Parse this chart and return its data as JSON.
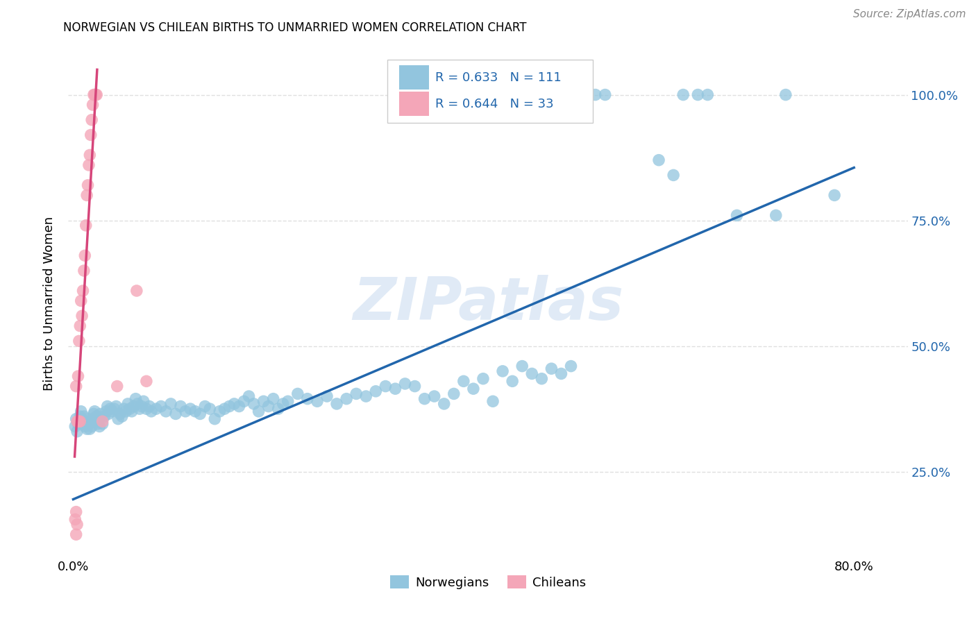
{
  "title": "NORWEGIAN VS CHILEAN BIRTHS TO UNMARRIED WOMEN CORRELATION CHART",
  "source": "Source: ZipAtlas.com",
  "ylabel": "Births to Unmarried Women",
  "watermark": "ZIPatlas",
  "legend_label_blue": "Norwegians",
  "legend_label_pink": "Chileans",
  "blue_color": "#92c5de",
  "blue_line_color": "#2166ac",
  "pink_color": "#f4a6b8",
  "pink_line_color": "#d6457a",
  "blue_scatter": [
    [
      0.002,
      0.34
    ],
    [
      0.003,
      0.355
    ],
    [
      0.004,
      0.33
    ],
    [
      0.005,
      0.345
    ],
    [
      0.006,
      0.35
    ],
    [
      0.007,
      0.36
    ],
    [
      0.008,
      0.37
    ],
    [
      0.009,
      0.355
    ],
    [
      0.01,
      0.345
    ],
    [
      0.011,
      0.36
    ],
    [
      0.012,
      0.34
    ],
    [
      0.013,
      0.35
    ],
    [
      0.014,
      0.335
    ],
    [
      0.015,
      0.355
    ],
    [
      0.016,
      0.345
    ],
    [
      0.017,
      0.335
    ],
    [
      0.018,
      0.35
    ],
    [
      0.019,
      0.34
    ],
    [
      0.02,
      0.355
    ],
    [
      0.021,
      0.365
    ],
    [
      0.022,
      0.37
    ],
    [
      0.023,
      0.35
    ],
    [
      0.024,
      0.36
    ],
    [
      0.025,
      0.345
    ],
    [
      0.026,
      0.355
    ],
    [
      0.027,
      0.34
    ],
    [
      0.028,
      0.365
    ],
    [
      0.03,
      0.345
    ],
    [
      0.032,
      0.36
    ],
    [
      0.034,
      0.37
    ],
    [
      0.035,
      0.38
    ],
    [
      0.036,
      0.365
    ],
    [
      0.038,
      0.375
    ],
    [
      0.04,
      0.37
    ],
    [
      0.042,
      0.375
    ],
    [
      0.044,
      0.38
    ],
    [
      0.046,
      0.355
    ],
    [
      0.048,
      0.365
    ],
    [
      0.05,
      0.36
    ],
    [
      0.052,
      0.375
    ],
    [
      0.054,
      0.37
    ],
    [
      0.056,
      0.385
    ],
    [
      0.058,
      0.375
    ],
    [
      0.06,
      0.37
    ],
    [
      0.062,
      0.38
    ],
    [
      0.064,
      0.395
    ],
    [
      0.066,
      0.385
    ],
    [
      0.068,
      0.375
    ],
    [
      0.07,
      0.38
    ],
    [
      0.072,
      0.39
    ],
    [
      0.075,
      0.375
    ],
    [
      0.078,
      0.38
    ],
    [
      0.08,
      0.37
    ],
    [
      0.085,
      0.375
    ],
    [
      0.09,
      0.38
    ],
    [
      0.095,
      0.37
    ],
    [
      0.1,
      0.385
    ],
    [
      0.105,
      0.365
    ],
    [
      0.11,
      0.38
    ],
    [
      0.115,
      0.37
    ],
    [
      0.12,
      0.375
    ],
    [
      0.125,
      0.37
    ],
    [
      0.13,
      0.365
    ],
    [
      0.135,
      0.38
    ],
    [
      0.14,
      0.375
    ],
    [
      0.145,
      0.355
    ],
    [
      0.15,
      0.37
    ],
    [
      0.155,
      0.375
    ],
    [
      0.16,
      0.38
    ],
    [
      0.165,
      0.385
    ],
    [
      0.17,
      0.38
    ],
    [
      0.175,
      0.39
    ],
    [
      0.18,
      0.4
    ],
    [
      0.185,
      0.385
    ],
    [
      0.19,
      0.37
    ],
    [
      0.195,
      0.39
    ],
    [
      0.2,
      0.38
    ],
    [
      0.205,
      0.395
    ],
    [
      0.21,
      0.375
    ],
    [
      0.215,
      0.385
    ],
    [
      0.22,
      0.39
    ],
    [
      0.23,
      0.405
    ],
    [
      0.24,
      0.395
    ],
    [
      0.25,
      0.39
    ],
    [
      0.26,
      0.4
    ],
    [
      0.27,
      0.385
    ],
    [
      0.28,
      0.395
    ],
    [
      0.29,
      0.405
    ],
    [
      0.3,
      0.4
    ],
    [
      0.31,
      0.41
    ],
    [
      0.32,
      0.42
    ],
    [
      0.33,
      0.415
    ],
    [
      0.34,
      0.425
    ],
    [
      0.35,
      0.42
    ],
    [
      0.36,
      0.395
    ],
    [
      0.37,
      0.4
    ],
    [
      0.38,
      0.385
    ],
    [
      0.39,
      0.405
    ],
    [
      0.4,
      0.43
    ],
    [
      0.41,
      0.415
    ],
    [
      0.42,
      0.435
    ],
    [
      0.43,
      0.39
    ],
    [
      0.44,
      0.45
    ],
    [
      0.45,
      0.43
    ],
    [
      0.46,
      0.46
    ],
    [
      0.47,
      0.445
    ],
    [
      0.48,
      0.435
    ],
    [
      0.49,
      0.455
    ],
    [
      0.5,
      0.445
    ],
    [
      0.51,
      0.46
    ],
    [
      0.52,
      1.0
    ],
    [
      0.535,
      1.0
    ],
    [
      0.545,
      1.0
    ],
    [
      0.6,
      0.87
    ],
    [
      0.615,
      0.84
    ],
    [
      0.625,
      1.0
    ],
    [
      0.64,
      1.0
    ],
    [
      0.65,
      1.0
    ],
    [
      0.68,
      0.76
    ],
    [
      0.72,
      0.76
    ],
    [
      0.73,
      1.0
    ],
    [
      0.78,
      0.8
    ]
  ],
  "pink_scatter": [
    [
      0.003,
      0.42
    ],
    [
      0.004,
      0.35
    ],
    [
      0.005,
      0.44
    ],
    [
      0.006,
      0.51
    ],
    [
      0.007,
      0.54
    ],
    [
      0.008,
      0.59
    ],
    [
      0.009,
      0.56
    ],
    [
      0.01,
      0.61
    ],
    [
      0.011,
      0.65
    ],
    [
      0.012,
      0.68
    ],
    [
      0.013,
      0.74
    ],
    [
      0.014,
      0.8
    ],
    [
      0.015,
      0.82
    ],
    [
      0.016,
      0.86
    ],
    [
      0.017,
      0.88
    ],
    [
      0.018,
      0.92
    ],
    [
      0.019,
      0.95
    ],
    [
      0.02,
      0.98
    ],
    [
      0.021,
      1.0
    ],
    [
      0.022,
      1.0
    ],
    [
      0.023,
      1.0
    ],
    [
      0.024,
      1.0
    ],
    [
      0.003,
      0.17
    ],
    [
      0.004,
      0.145
    ],
    [
      0.005,
      0.35
    ],
    [
      0.006,
      0.35
    ],
    [
      0.007,
      0.35
    ],
    [
      0.03,
      0.35
    ],
    [
      0.045,
      0.42
    ],
    [
      0.065,
      0.61
    ],
    [
      0.075,
      0.43
    ],
    [
      0.002,
      0.155
    ],
    [
      0.003,
      0.125
    ]
  ],
  "blue_line_x": [
    0.0,
    0.8
  ],
  "blue_line_y": [
    0.195,
    0.855
  ],
  "pink_line_x": [
    0.0015,
    0.0245
  ],
  "pink_line_y": [
    0.28,
    1.05
  ],
  "xlim": [
    -0.005,
    0.855
  ],
  "ylim": [
    0.08,
    1.09
  ],
  "yticks": [
    0.25,
    0.5,
    0.75,
    1.0
  ],
  "ytick_labels_right": [
    "25.0%",
    "50.0%",
    "75.0%",
    "100.0%"
  ],
  "xticks": [
    0.0,
    0.1,
    0.2,
    0.3,
    0.4,
    0.5,
    0.6,
    0.7,
    0.8
  ],
  "xtick_labels": [
    "0.0%",
    "",
    "",
    "",
    "",
    "",
    "",
    "",
    "80.0%"
  ],
  "background_color": "#ffffff",
  "grid_color": "#e0e0e0"
}
